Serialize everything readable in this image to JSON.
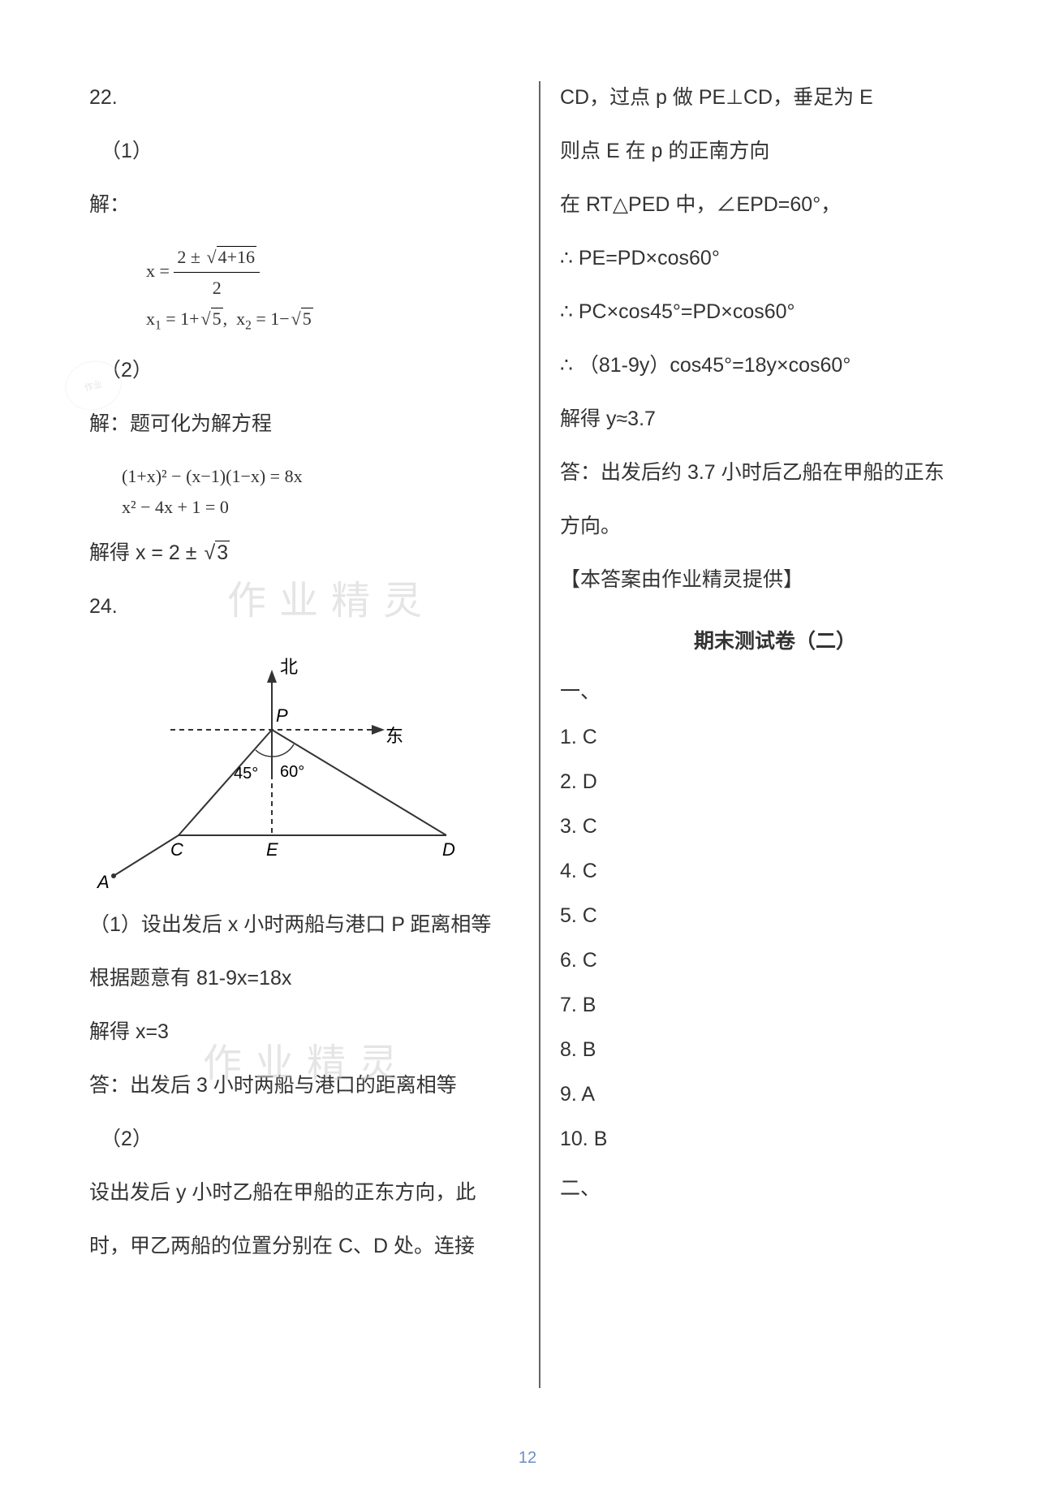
{
  "page_number": "12",
  "left": {
    "q22": "22.",
    "q22_1": "（1）",
    "q22_solve": "解：",
    "eq1_lhs": "x =",
    "eq1_num": "2 ± √(4+16)",
    "eq1_den": "2",
    "eq1_roots": "x₁ = 1+√5,  x₂ = 1−√5",
    "q22_2": "（2）",
    "q22_2_solve": "解：题可化为解方程",
    "eq2_line1": "(1+x)² − (x−1)(1−x) = 8x",
    "eq2_line2": "x² − 4x + 1 = 0",
    "eq2_result": "解得 x = 2 ± √3",
    "q24": "24.",
    "diagram": {
      "north": "北",
      "east": "东",
      "P": "P",
      "A": "A",
      "C": "C",
      "E": "E",
      "D": "D",
      "ang45": "45°",
      "ang60": "60°",
      "stroke": "#333333",
      "dash": "5,4"
    },
    "p24_1": "（1）设出发后 x 小时两船与港口 P 距离相等",
    "p24_2": "根据题意有 81-9x=18x",
    "p24_3": "解得 x=3",
    "p24_4": "答：出发后 3 小时两船与港口的距离相等",
    "p24_5": "（2）",
    "p24_6": "设出发后 y 小时乙船在甲船的正东方向，此",
    "p24_7": "时，甲乙两船的位置分别在 C、D 处。连接"
  },
  "right": {
    "r1": "CD，过点 p 做 PE⊥CD，垂足为 E",
    "r2": "则点 E 在 p 的正南方向",
    "r3": "在 RT△PED 中，∠EPD=60°，",
    "r4": "∴ PE=PD×cos60°",
    "r5": "∴ PC×cos45°=PD×cos60°",
    "r6": "∴ （81-9y）cos45°=18y×cos60°",
    "r7": "解得 y≈3.7",
    "r8": "答：出发后约 3.7 小时后乙船在甲船的正东",
    "r9": "方向。",
    "r10": "【本答案由作业精灵提供】",
    "section_title": "期末测试卷（二）",
    "sec1": "一、",
    "answers": [
      {
        "n": "1.",
        "v": "C"
      },
      {
        "n": "2.",
        "v": "D"
      },
      {
        "n": "3.",
        "v": "C"
      },
      {
        "n": "4.",
        "v": "C"
      },
      {
        "n": "5.",
        "v": "C"
      },
      {
        "n": "6.",
        "v": "C"
      },
      {
        "n": "7.",
        "v": "B"
      },
      {
        "n": "8.",
        "v": "B"
      },
      {
        "n": "9.",
        "v": "A"
      },
      {
        "n": "10.",
        "v": "B"
      }
    ],
    "sec2": "二、"
  },
  "watermark": "作业精灵",
  "stamp_text": "作业"
}
